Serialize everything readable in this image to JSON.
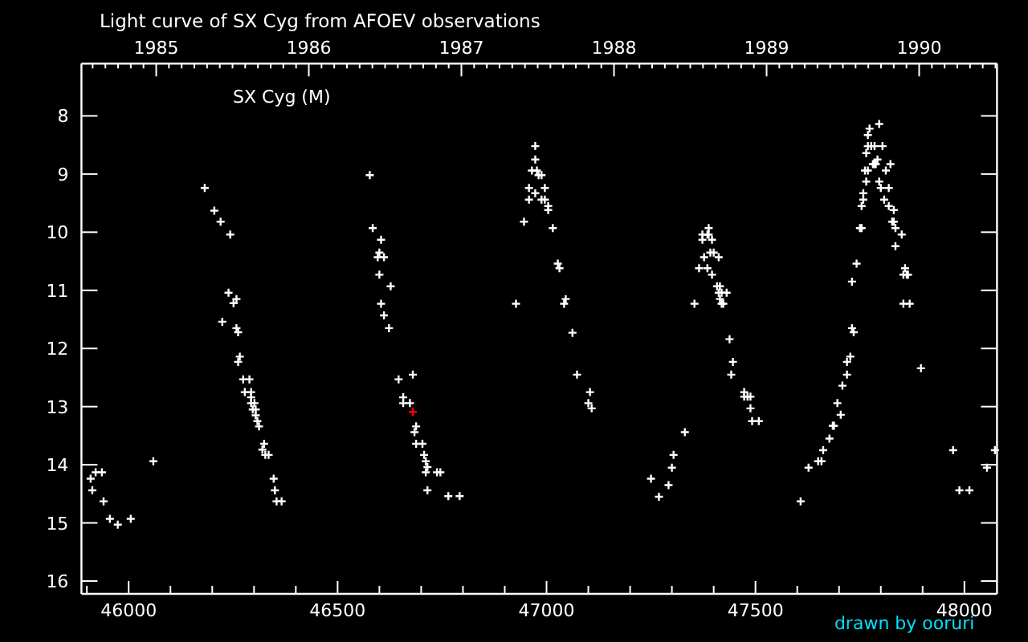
{
  "chart_data": {
    "type": "scatter",
    "title": "Light curve of SX Cyg from AFOEV observations",
    "annotations": [
      "SX Cyg (M)",
      "drawn by ooruri"
    ],
    "xlim": [
      45887,
      48078
    ],
    "ylim": [
      16.22,
      7.1
    ],
    "xticks": [
      {
        "value": 45900,
        "label": null
      },
      46000,
      {
        "value": 46100,
        "label": null
      },
      {
        "value": 46200,
        "label": null
      },
      {
        "value": 46300,
        "label": null
      },
      {
        "value": 46400,
        "label": null
      },
      46500,
      {
        "value": 46600,
        "label": null
      },
      {
        "value": 46700,
        "label": null
      },
      {
        "value": 46800,
        "label": null
      },
      {
        "value": 46900,
        "label": null
      },
      47000,
      {
        "value": 47100,
        "label": null
      },
      {
        "value": 47200,
        "label": null
      },
      {
        "value": 47300,
        "label": null
      },
      {
        "value": 47400,
        "label": null
      },
      47500,
      {
        "value": 47600,
        "label": null
      },
      {
        "value": 47700,
        "label": null
      },
      {
        "value": 47800,
        "label": null
      },
      {
        "value": 47900,
        "label": null
      },
      48000
    ],
    "yticks": [
      8,
      9,
      10,
      11,
      12,
      13,
      14,
      15,
      16
    ],
    "x2lim": [
      1984.51,
      1990.51
    ],
    "x2ticks": [
      {
        "value": 1984.5833,
        "label": null
      },
      {
        "value": 1984.6667,
        "label": null
      },
      {
        "value": 1984.75,
        "label": null
      },
      {
        "value": 1984.8333,
        "label": null
      },
      {
        "value": 1984.9167,
        "label": null
      },
      1985,
      {
        "value": 1985.0833,
        "label": null
      },
      {
        "value": 1985.1667,
        "label": null
      },
      {
        "value": 1985.25,
        "label": null
      },
      {
        "value": 1985.3333,
        "label": null
      },
      {
        "value": 1985.4167,
        "label": null
      },
      {
        "value": 1985.5,
        "label": null
      },
      {
        "value": 1985.5833,
        "label": null
      },
      {
        "value": 1985.6667,
        "label": null
      },
      {
        "value": 1985.75,
        "label": null
      },
      {
        "value": 1985.8333,
        "label": null
      },
      {
        "value": 1985.9167,
        "label": null
      },
      1986,
      {
        "value": 1986.0833,
        "label": null
      },
      {
        "value": 1986.1667,
        "label": null
      },
      {
        "value": 1986.25,
        "label": null
      },
      {
        "value": 1986.3333,
        "label": null
      },
      {
        "value": 1986.4167,
        "label": null
      },
      {
        "value": 1986.5,
        "label": null
      },
      {
        "value": 1986.5833,
        "label": null
      },
      {
        "value": 1986.6667,
        "label": null
      },
      {
        "value": 1986.75,
        "label": null
      },
      {
        "value": 1986.8333,
        "label": null
      },
      {
        "value": 1986.9167,
        "label": null
      },
      1987,
      {
        "value": 1987.0833,
        "label": null
      },
      {
        "value": 1987.1667,
        "label": null
      },
      {
        "value": 1987.25,
        "label": null
      },
      {
        "value": 1987.3333,
        "label": null
      },
      {
        "value": 1987.4167,
        "label": null
      },
      {
        "value": 1987.5,
        "label": null
      },
      {
        "value": 1987.5833,
        "label": null
      },
      {
        "value": 1987.6667,
        "label": null
      },
      {
        "value": 1987.75,
        "label": null
      },
      {
        "value": 1987.8333,
        "label": null
      },
      {
        "value": 1987.9167,
        "label": null
      },
      1988,
      {
        "value": 1988.0833,
        "label": null
      },
      {
        "value": 1988.1667,
        "label": null
      },
      {
        "value": 1988.25,
        "label": null
      },
      {
        "value": 1988.3333,
        "label": null
      },
      {
        "value": 1988.4167,
        "label": null
      },
      {
        "value": 1988.5,
        "label": null
      },
      {
        "value": 1988.5833,
        "label": null
      },
      {
        "value": 1988.6667,
        "label": null
      },
      {
        "value": 1988.75,
        "label": null
      },
      {
        "value": 1988.8333,
        "label": null
      },
      {
        "value": 1988.9167,
        "label": null
      },
      1989,
      {
        "value": 1989.0833,
        "label": null
      },
      {
        "value": 1989.1667,
        "label": null
      },
      {
        "value": 1989.25,
        "label": null
      },
      {
        "value": 1989.3333,
        "label": null
      },
      {
        "value": 1989.4167,
        "label": null
      },
      {
        "value": 1989.5,
        "label": null
      },
      {
        "value": 1989.5833,
        "label": null
      },
      {
        "value": 1989.6667,
        "label": null
      },
      {
        "value": 1989.75,
        "label": null
      },
      {
        "value": 1989.8333,
        "label": null
      },
      {
        "value": 1989.9167,
        "label": null
      },
      1990,
      {
        "value": 1990.0833,
        "label": null
      },
      {
        "value": 1990.1667,
        "label": null
      },
      {
        "value": 1990.25,
        "label": null
      },
      {
        "value": 1990.3333,
        "label": null
      },
      {
        "value": 1990.4167,
        "label": null
      },
      {
        "value": 1990.5,
        "label": null
      }
    ],
    "marker": "cross",
    "series": [
      {
        "color": "#ffffff",
        "x": [
          45909,
          45913,
          45921,
          45936,
          45940,
          45955,
          45974,
          46005,
          46059,
          46182,
          46205,
          46220,
          46243,
          46224,
          46239,
          46251,
          46258,
          46258,
          46262,
          46266,
          46262,
          46274,
          46289,
          46278,
          46293,
          46293,
          46293,
          46301,
          46297,
          46304,
          46304,
          46308,
          46312,
          46324,
          46320,
          46327,
          46335,
          46347,
          46350,
          46354,
          46366,
          46577,
          46584,
          46604,
          46600,
          46596,
          46611,
          46600,
          46627,
          46604,
          46611,
          46623,
          46646,
          46680,
          46657,
          46657,
          46673,
          46688,
          46684,
          46688,
          46703,
          46707,
          46711,
          46715,
          46711,
          46738,
          46746,
          46715,
          46765,
          46792,
          46927,
          46946,
          46958,
          46958,
          46965,
          46973,
          46973,
          46973,
          46977,
          46981,
          46988,
          46988,
          46996,
          46996,
          47004,
          47004,
          47015,
          47027,
          47031,
          47046,
          47042,
          47062,
          47073,
          47104,
          47100,
          47108,
          47250,
          47269,
          47292,
          47300,
          47304,
          47331,
          47354,
          47365,
          47373,
          47373,
          47377,
          47385,
          47385,
          47388,
          47388,
          47392,
          47396,
          47396,
          47400,
          47412,
          47408,
          47415,
          47412,
          47419,
          47431,
          47415,
          47419,
          47423,
          47438,
          47446,
          47442,
          47473,
          47473,
          47481,
          47488,
          47488,
          47492,
          47508,
          47608,
          47627,
          47650,
          47658,
          47662,
          47677,
          47685,
          47688,
          47696,
          47704,
          47708,
          47719,
          47719,
          47727,
          47731,
          47735,
          47731,
          47742,
          47750,
          47754,
          47754,
          47758,
          47758,
          47762,
          47765,
          47765,
          47769,
          47769,
          47769,
          47773,
          47777,
          47781,
          47785,
          47785,
          47788,
          47796,
          47792,
          47796,
          47800,
          47804,
          47808,
          47812,
          47819,
          47819,
          47823,
          47827,
          47831,
          47835,
          47835,
          47831,
          47850,
          47854,
          47858,
          47862,
          47865,
          47854,
          47869,
          47896,
          47973,
          47988,
          48012,
          48054,
          48073
        ],
        "values": [
          14.24,
          14.44,
          14.13,
          14.13,
          14.63,
          14.93,
          15.03,
          14.93,
          13.94,
          9.24,
          9.63,
          9.82,
          10.04,
          11.54,
          11.04,
          11.22,
          11.15,
          11.65,
          11.72,
          12.14,
          12.23,
          12.53,
          12.53,
          12.75,
          12.75,
          12.84,
          12.94,
          12.94,
          13.05,
          13.05,
          13.15,
          13.25,
          13.34,
          13.64,
          13.74,
          13.83,
          13.83,
          14.24,
          14.44,
          14.63,
          14.63,
          9.02,
          9.93,
          10.13,
          10.35,
          10.43,
          10.43,
          10.73,
          10.93,
          11.23,
          11.43,
          11.65,
          12.53,
          12.45,
          12.84,
          12.94,
          12.94,
          13.34,
          13.44,
          13.64,
          13.64,
          13.83,
          13.94,
          14.04,
          14.13,
          14.13,
          14.13,
          14.44,
          14.54,
          14.54,
          11.23,
          9.82,
          9.24,
          9.44,
          8.94,
          8.52,
          8.75,
          9.33,
          8.94,
          9.02,
          9.02,
          9.44,
          9.24,
          9.44,
          9.55,
          9.62,
          9.93,
          10.54,
          10.62,
          11.15,
          11.23,
          11.73,
          12.45,
          12.75,
          12.94,
          13.03,
          14.24,
          14.55,
          14.35,
          14.05,
          13.83,
          13.44,
          11.23,
          10.62,
          10.04,
          10.13,
          10.43,
          10.62,
          10.04,
          9.93,
          10.04,
          10.35,
          10.13,
          10.73,
          10.35,
          10.43,
          10.93,
          10.93,
          11.04,
          11.04,
          11.04,
          11.15,
          11.23,
          11.23,
          11.84,
          12.23,
          12.45,
          12.75,
          12.83,
          12.83,
          12.83,
          13.03,
          13.25,
          13.25,
          14.63,
          14.05,
          13.94,
          13.94,
          13.75,
          13.55,
          13.33,
          13.33,
          12.94,
          13.14,
          12.64,
          12.45,
          12.23,
          12.14,
          11.65,
          11.72,
          10.85,
          10.54,
          9.93,
          9.93,
          9.55,
          9.44,
          9.33,
          8.94,
          9.13,
          8.64,
          8.94,
          8.52,
          8.33,
          8.22,
          8.52,
          8.83,
          8.52,
          8.83,
          8.83,
          8.14,
          8.75,
          9.13,
          9.24,
          8.52,
          9.44,
          8.94,
          9.24,
          9.55,
          8.83,
          9.82,
          9.62,
          9.93,
          10.24,
          9.82,
          10.04,
          10.73,
          10.62,
          10.73,
          10.73,
          11.23,
          11.23,
          12.34,
          13.75,
          14.44,
          14.44,
          14.05,
          13.75
        ]
      },
      {
        "color": "#ff0000",
        "x": [
          46680
        ],
        "values": [
          13.09
        ]
      }
    ]
  }
}
